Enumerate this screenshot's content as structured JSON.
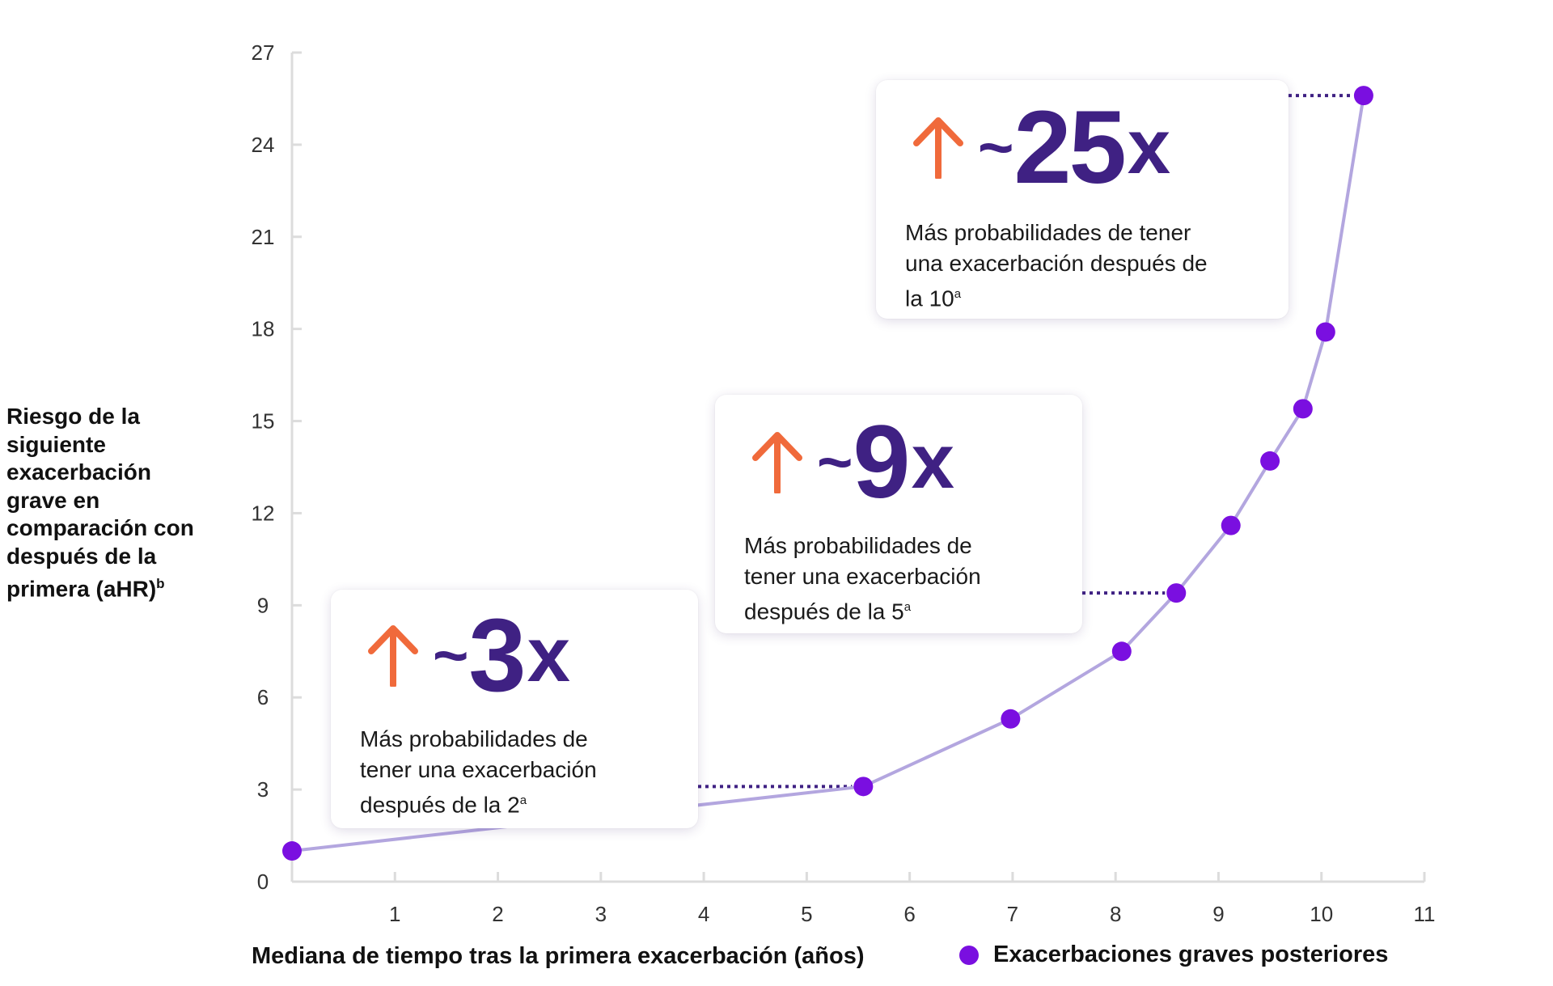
{
  "chart_data": {
    "type": "line",
    "xlabel": "Mediana de tiempo tras la primera exacerbación (años)",
    "ylabel_lines": [
      "Riesgo de la",
      "siguiente",
      "exacerbación",
      "grave en",
      "comparación con",
      "después de la",
      "primera (aHR)"
    ],
    "ylabel_superscript": "b",
    "xlim": [
      0,
      11
    ],
    "ylim": [
      0,
      27
    ],
    "x_ticks": [
      1,
      2,
      3,
      4,
      5,
      6,
      7,
      8,
      9,
      10,
      11
    ],
    "y_ticks": [
      0,
      3,
      6,
      9,
      12,
      15,
      18,
      21,
      24,
      27
    ],
    "grid": false,
    "legend": {
      "placement": "bottom-right"
    },
    "series": [
      {
        "name": "Exacerbaciones graves posteriores",
        "color": "#7a0fe0",
        "line_color": "#b3a6df",
        "points": [
          {
            "x": 0,
            "y": 1.0
          },
          {
            "x": 5.55,
            "y": 3.1
          },
          {
            "x": 6.98,
            "y": 5.3
          },
          {
            "x": 8.06,
            "y": 7.5
          },
          {
            "x": 8.59,
            "y": 9.4
          },
          {
            "x": 9.12,
            "y": 11.6
          },
          {
            "x": 9.5,
            "y": 13.7
          },
          {
            "x": 9.82,
            "y": 15.4
          },
          {
            "x": 10.04,
            "y": 17.9
          },
          {
            "x": 10.41,
            "y": 25.6
          }
        ]
      }
    ],
    "annotations": [
      {
        "value_prefix": "~",
        "value": "3",
        "value_suffix": "x",
        "text_lines": [
          "Más probabilidades de",
          "tener una exacerbación",
          "después de la 2"
        ],
        "text_superscript": "a",
        "point_index": 1
      },
      {
        "value_prefix": "~",
        "value": "9",
        "value_suffix": "x",
        "text_lines": [
          "Más probabilidades de",
          "tener una exacerbación",
          "después de la 5"
        ],
        "text_superscript": "a",
        "point_index": 4
      },
      {
        "value_prefix": "~",
        "value": "25",
        "value_suffix": "x",
        "text_lines": [
          "Más probabilidades de tener",
          "una exacerbación después de",
          "la 10"
        ],
        "text_superscript": "a",
        "point_index": 9
      }
    ],
    "colors": {
      "axis": "#dcdcdc",
      "tick_text": "#333333",
      "emphasis": "#3f2183",
      "arrow": "#f06a3b",
      "connector": "#3f2183"
    }
  }
}
